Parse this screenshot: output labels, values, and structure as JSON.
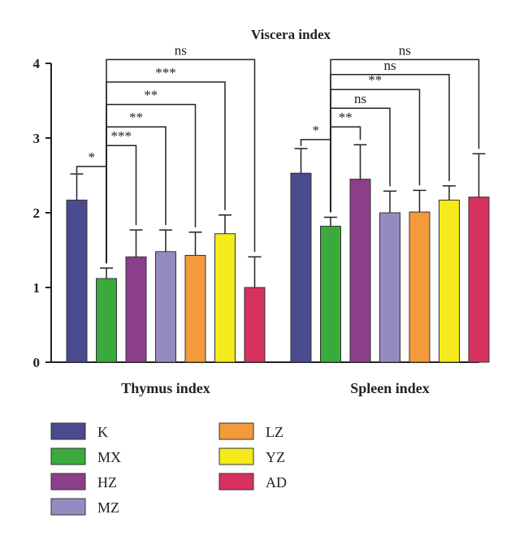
{
  "chart_data": {
    "type": "bar",
    "title": "Viscera index",
    "categories": [
      "Thymus index",
      "Spleen index"
    ],
    "ylim": [
      0,
      4
    ],
    "yticks": [
      0,
      1,
      2,
      3,
      4
    ],
    "grid": false,
    "legend_position": "bottom-left",
    "series": [
      {
        "name": "K",
        "color": "#4b4a8f",
        "values": [
          2.17,
          2.53
        ],
        "errors": [
          0.35,
          0.33
        ]
      },
      {
        "name": "MX",
        "color": "#3aaa3c",
        "values": [
          1.12,
          1.82
        ],
        "errors": [
          0.14,
          0.12
        ]
      },
      {
        "name": "HZ",
        "color": "#8b3f8a",
        "values": [
          1.41,
          2.45
        ],
        "errors": [
          0.36,
          0.46
        ]
      },
      {
        "name": "MZ",
        "color": "#968bc0",
        "values": [
          1.48,
          2.0
        ],
        "errors": [
          0.29,
          0.29
        ]
      },
      {
        "name": "LZ",
        "color": "#f39a3c",
        "values": [
          1.43,
          2.01
        ],
        "errors": [
          0.31,
          0.29
        ]
      },
      {
        "name": "YZ",
        "color": "#f5ea1b",
        "values": [
          1.72,
          2.17
        ],
        "errors": [
          0.25,
          0.19
        ]
      },
      {
        "name": "AD",
        "color": "#d6315f",
        "values": [
          1.0,
          2.21
        ],
        "errors": [
          0.41,
          0.58
        ]
      }
    ],
    "significance": [
      {
        "category": 0,
        "from": 0,
        "to": 1,
        "label": "*",
        "y": 2.62
      },
      {
        "category": 0,
        "from": 1,
        "to": 2,
        "label": "***",
        "y": 2.9
      },
      {
        "category": 0,
        "from": 1,
        "to": 3,
        "label": "**",
        "y": 3.15
      },
      {
        "category": 0,
        "from": 1,
        "to": 4,
        "label": "**",
        "y": 3.45
      },
      {
        "category": 0,
        "from": 1,
        "to": 5,
        "label": "***",
        "y": 3.75
      },
      {
        "category": 0,
        "from": 1,
        "to": 6,
        "label": "ns",
        "y": 4.05
      },
      {
        "category": 1,
        "from": 0,
        "to": 1,
        "label": "*",
        "y": 2.98
      },
      {
        "category": 1,
        "from": 1,
        "to": 2,
        "label": "**",
        "y": 3.15
      },
      {
        "category": 1,
        "from": 1,
        "to": 3,
        "label": "ns",
        "y": 3.4
      },
      {
        "category": 1,
        "from": 1,
        "to": 4,
        "label": "**",
        "y": 3.65
      },
      {
        "category": 1,
        "from": 1,
        "to": 5,
        "label": "ns",
        "y": 3.85
      },
      {
        "category": 1,
        "from": 1,
        "to": 6,
        "label": "ns",
        "y": 4.05
      }
    ]
  }
}
